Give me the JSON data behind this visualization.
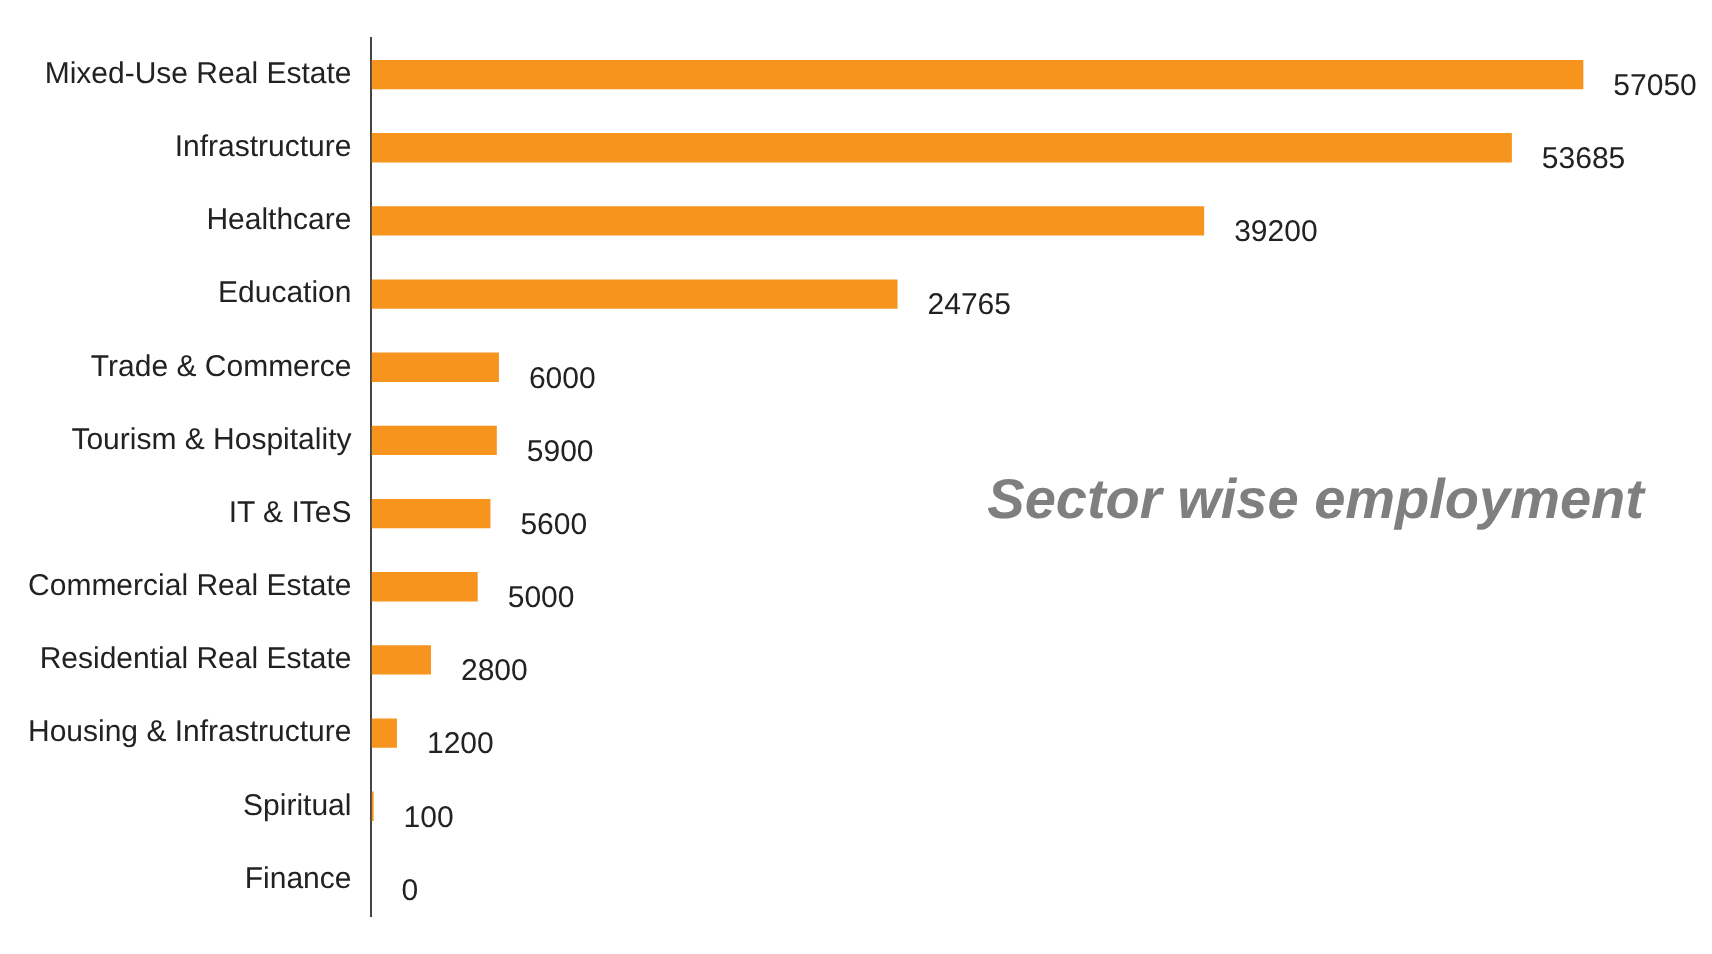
{
  "chart_data": {
    "type": "bar",
    "orientation": "horizontal",
    "title": "Sector wise employment",
    "categories": [
      "Mixed-Use Real Estate",
      "Infrastructure",
      "Healthcare",
      "Education",
      "Trade & Commerce",
      "Tourism & Hospitality",
      "IT & ITeS",
      "Commercial Real Estate",
      "Residential Real Estate",
      "Housing & Infrastructure",
      "Spiritual",
      "Finance"
    ],
    "values": [
      57050,
      53685,
      39200,
      24765,
      6000,
      5900,
      5600,
      5000,
      2800,
      1200,
      100,
      0
    ],
    "color": "#f7941d",
    "data_labels": true,
    "grid": false,
    "legend": false,
    "tick_labels": "y"
  }
}
